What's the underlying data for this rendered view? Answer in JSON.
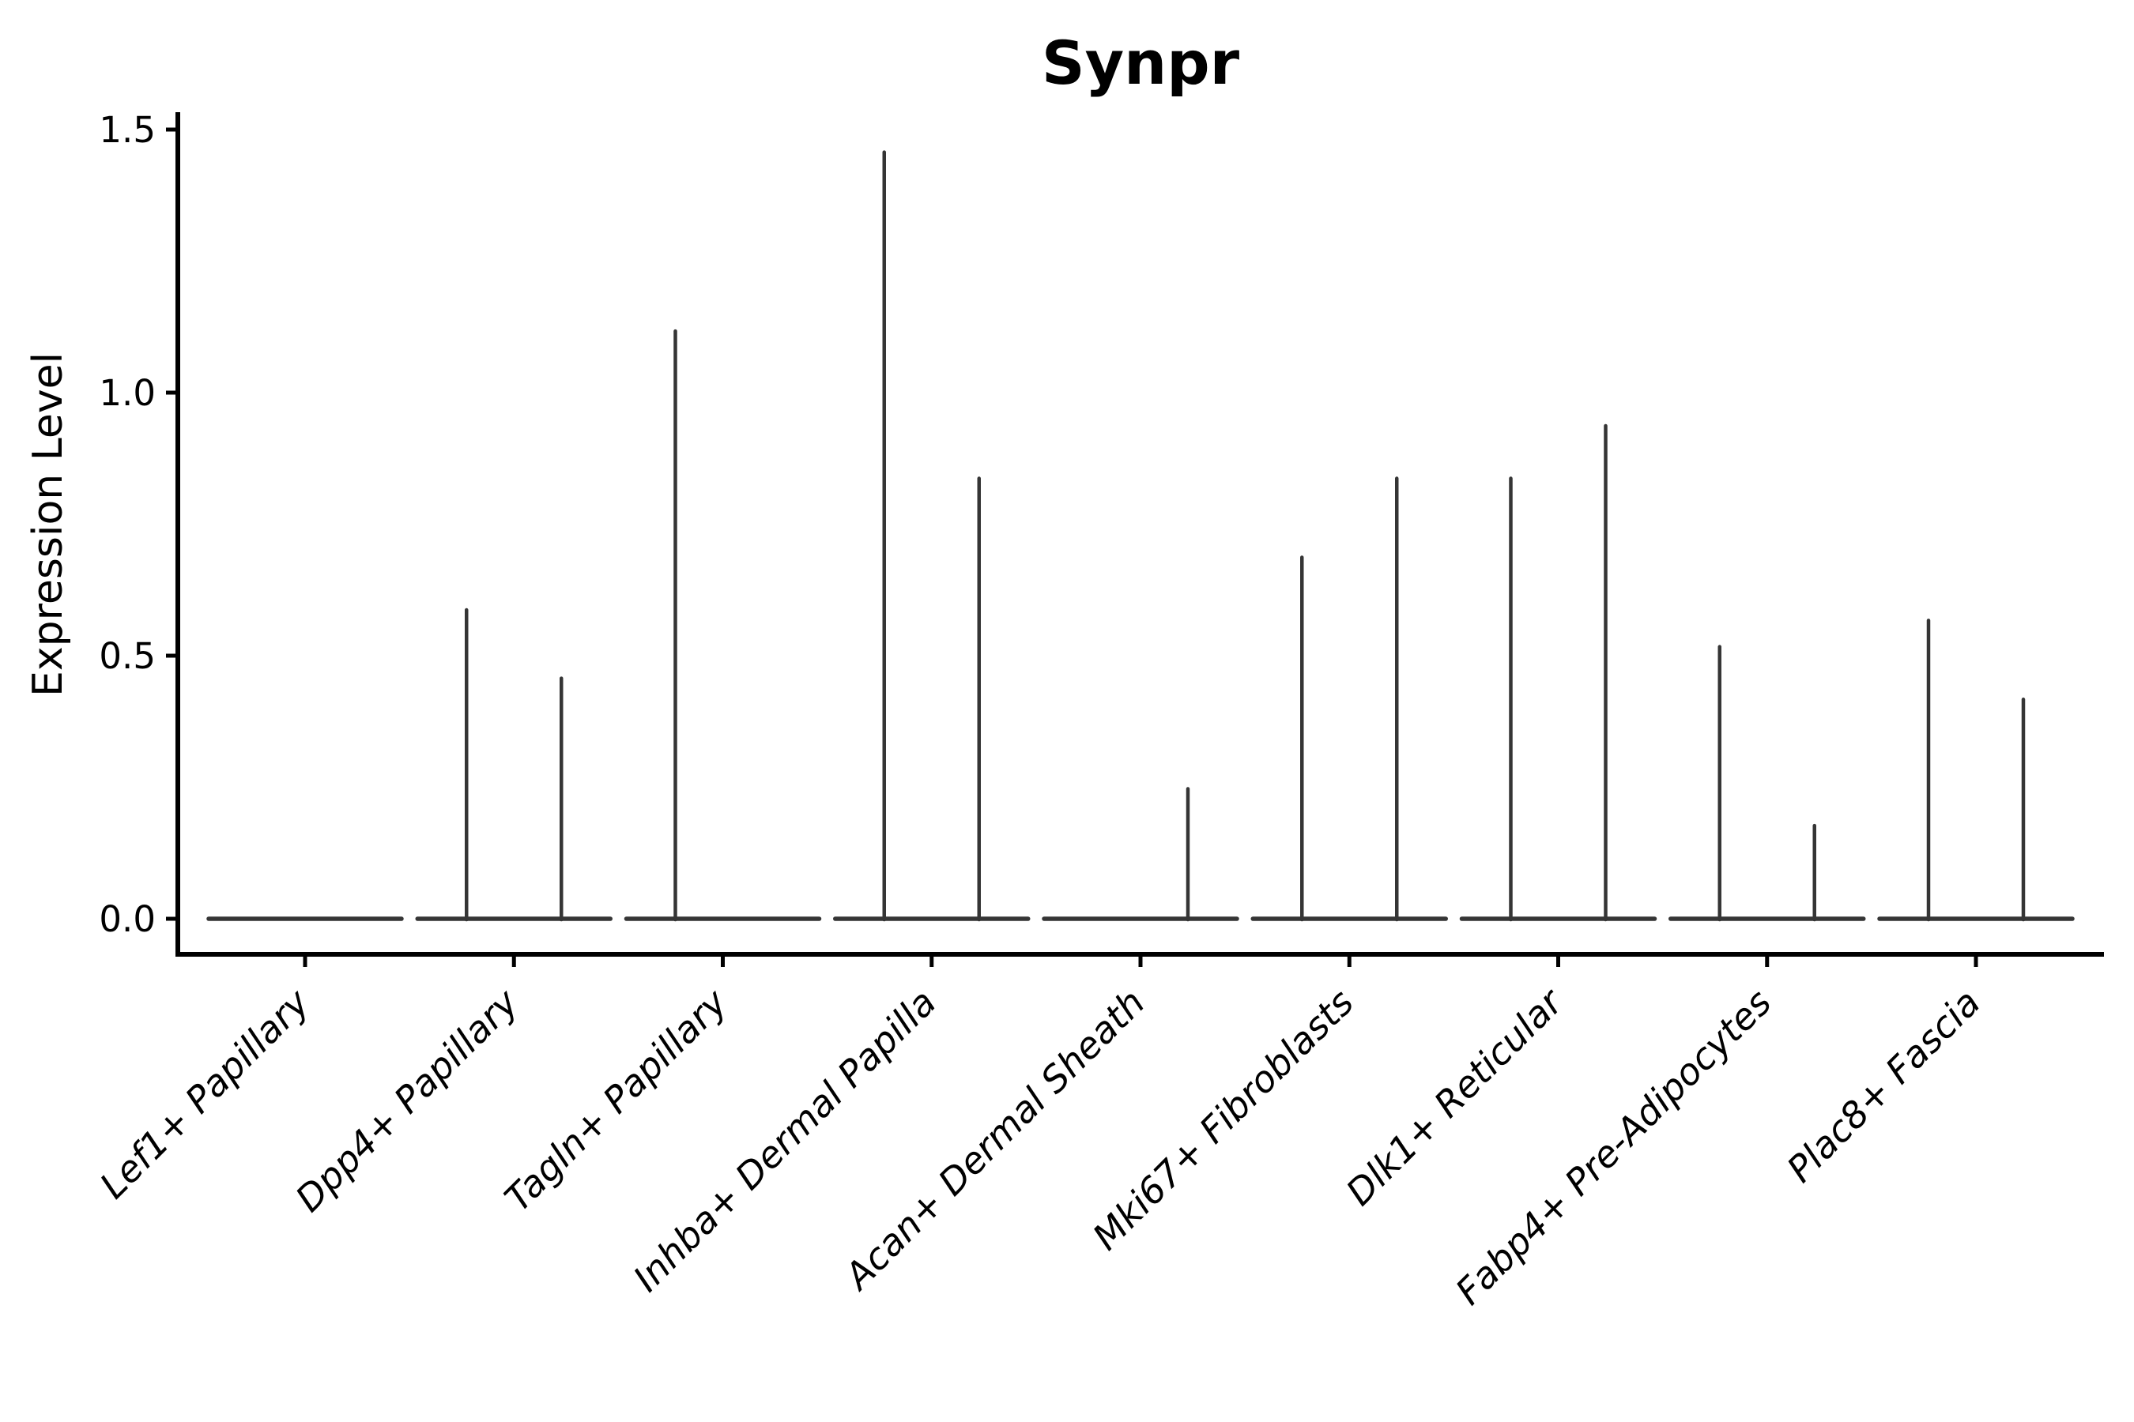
{
  "figure": {
    "background": "#ffffff"
  },
  "chart_data": {
    "type": "violin",
    "title": "Synpr",
    "xlabel": "",
    "ylabel": "Expression Level",
    "categories": [
      "Lef1+ Papillary",
      "Dpp4+ Papillary",
      "Tagln+ Papillary",
      "Inhba+ Dermal Papilla",
      "Acan+ Dermal Sheath",
      "Mki67+ Fibroblasts",
      "Dlk1+ Reticular",
      "Fabp4+ Pre-Adipocytes",
      "Plac8+ Fascia"
    ],
    "violins_per_category": 2,
    "series": [
      {
        "name": "left-violin",
        "max_expression": [
          0,
          0.59,
          1.12,
          1.46,
          0,
          0.69,
          0.84,
          0.52,
          0.57
        ]
      },
      {
        "name": "right-violin",
        "max_expression": [
          0,
          0.46,
          0,
          0.84,
          0.25,
          0.84,
          0.94,
          0.18,
          0.42
        ]
      }
    ],
    "yticks": [
      0.0,
      0.5,
      1.0,
      1.5
    ],
    "ytick_labels": [
      "0.0",
      "0.5",
      "1.0",
      "1.5"
    ],
    "ylim": [
      -0.07,
      1.54
    ],
    "grid": false,
    "legend": "none",
    "styles": {
      "violin_color": "#353535",
      "axis_color": "#000000",
      "text_color": "#000000",
      "background": "#ffffff",
      "xlabel_style": "italic",
      "xlabel_rotation_deg": 45
    }
  }
}
